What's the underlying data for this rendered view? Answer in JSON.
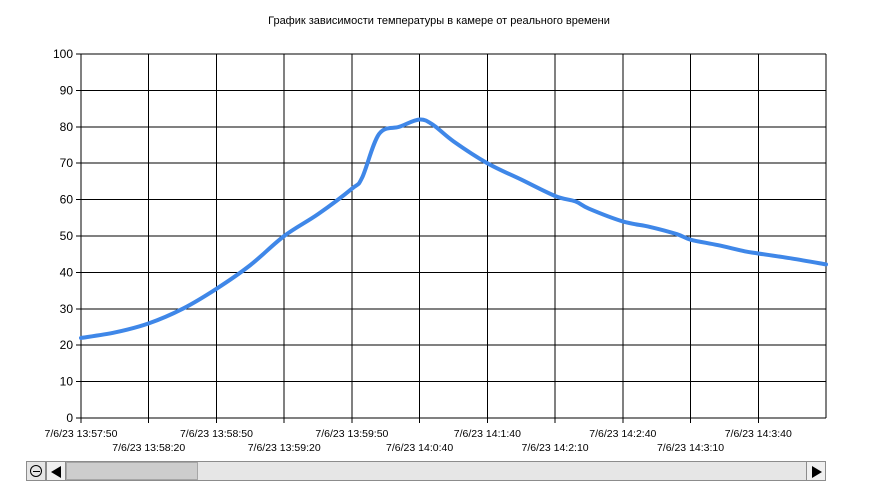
{
  "chart_data": {
    "type": "line",
    "title": "График зависимости температуры в камере от реального времени",
    "xlabel": "",
    "ylabel": "",
    "ylim": [
      0,
      100
    ],
    "yticks": [
      0,
      10,
      20,
      30,
      40,
      50,
      60,
      70,
      80,
      90,
      100
    ],
    "x_tick_labels": [
      "7/6/23 13:57:50",
      "7/6/23 13:58:20",
      "7/6/23 13:58:50",
      "7/6/23 13:59:20",
      "7/6/23 13:59:50",
      "7/6/23 14:0:40",
      "7/6/23 14:1:40",
      "7/6/23 14:2:10",
      "7/6/23 14:2:40",
      "7/6/23 14:3:10",
      "7/6/23 14:3:40"
    ],
    "grid": true,
    "color": "#3f87e8",
    "series": [
      {
        "x_index": [
          0,
          0.5,
          1,
          1.5,
          2,
          2.5,
          3,
          3.5,
          4,
          4.15,
          4.4,
          4.7,
          5,
          5.2,
          5.5,
          6,
          6.5,
          7,
          7.3,
          7.5,
          8,
          8.4,
          8.8,
          9,
          9.4,
          9.8,
          10,
          10.5,
          11
        ],
        "values": [
          22,
          23.5,
          26,
          30,
          35.5,
          42,
          50,
          56,
          63,
          66,
          78,
          80,
          82,
          80.5,
          76,
          70,
          65.5,
          61,
          59.5,
          57.5,
          54,
          52.5,
          50.5,
          49,
          47.5,
          45.8,
          45.2,
          43.8,
          42.2
        ]
      }
    ]
  },
  "scrollbar": {
    "icons": [
      "zoom-reset-icon",
      "arrow-left-icon",
      "arrow-right-icon"
    ]
  }
}
